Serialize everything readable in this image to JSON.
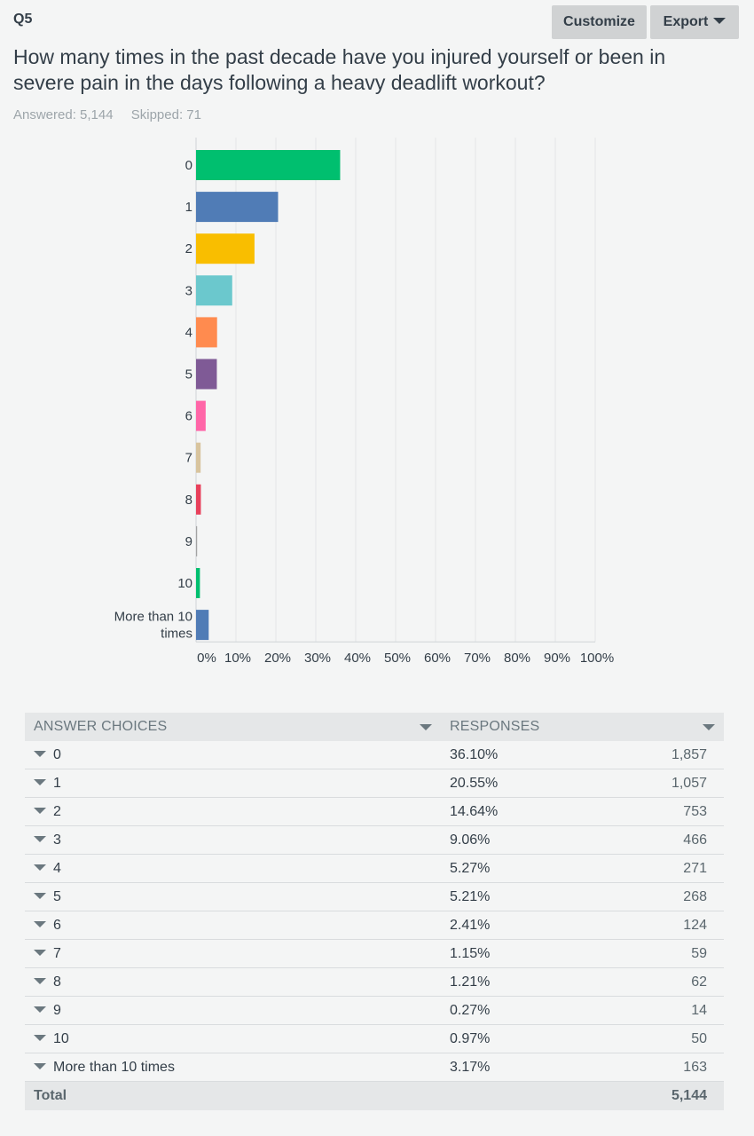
{
  "question": {
    "number": "Q5",
    "title": "How many times in the past decade have you injured yourself or been in severe pain in the days following a heavy deadlift workout?",
    "answered": "Answered: 5,144",
    "skipped": "Skipped: 71"
  },
  "toolbar": {
    "customize_label": "Customize",
    "export_label": "Export"
  },
  "chart_data": {
    "type": "bar",
    "orientation": "horizontal",
    "categories": [
      "0",
      "1",
      "2",
      "3",
      "4",
      "5",
      "6",
      "7",
      "8",
      "9",
      "10",
      "More than 10 times"
    ],
    "category_label_lines": [
      [
        "0"
      ],
      [
        "1"
      ],
      [
        "2"
      ],
      [
        "3"
      ],
      [
        "4"
      ],
      [
        "5"
      ],
      [
        "6"
      ],
      [
        "7"
      ],
      [
        "8"
      ],
      [
        "9"
      ],
      [
        "10"
      ],
      [
        "More than 10",
        "times"
      ]
    ],
    "values": [
      36.1,
      20.55,
      14.64,
      9.06,
      5.27,
      5.21,
      2.41,
      1.15,
      1.21,
      0.27,
      0.97,
      3.17
    ],
    "colors": [
      "#00bf6f",
      "#507cb6",
      "#f9be00",
      "#6bc8cd",
      "#ff8b4f",
      "#7f5a96",
      "#ff66a8",
      "#d8c49e",
      "#e8405b",
      "#a3a3a3",
      "#00bf6f",
      "#507cb6"
    ],
    "xticks": [
      "0%",
      "10%",
      "20%",
      "30%",
      "40%",
      "50%",
      "60%",
      "70%",
      "80%",
      "90%",
      "100%"
    ],
    "xlim": [
      0,
      100
    ],
    "grid": true
  },
  "table": {
    "headers": {
      "answer": "ANSWER CHOICES",
      "responses": "RESPONSES"
    },
    "rows": [
      {
        "choice": "0",
        "pct": "36.10%",
        "count": "1,857"
      },
      {
        "choice": "1",
        "pct": "20.55%",
        "count": "1,057"
      },
      {
        "choice": "2",
        "pct": "14.64%",
        "count": "753"
      },
      {
        "choice": "3",
        "pct": "9.06%",
        "count": "466"
      },
      {
        "choice": "4",
        "pct": "5.27%",
        "count": "271"
      },
      {
        "choice": "5",
        "pct": "5.21%",
        "count": "268"
      },
      {
        "choice": "6",
        "pct": "2.41%",
        "count": "124"
      },
      {
        "choice": "7",
        "pct": "1.15%",
        "count": "59"
      },
      {
        "choice": "8",
        "pct": "1.21%",
        "count": "62"
      },
      {
        "choice": "9",
        "pct": "0.27%",
        "count": "14"
      },
      {
        "choice": "10",
        "pct": "0.97%",
        "count": "50"
      },
      {
        "choice": "More than 10 times",
        "pct": "3.17%",
        "count": "163"
      }
    ],
    "total": {
      "label": "Total",
      "count": "5,144"
    }
  }
}
